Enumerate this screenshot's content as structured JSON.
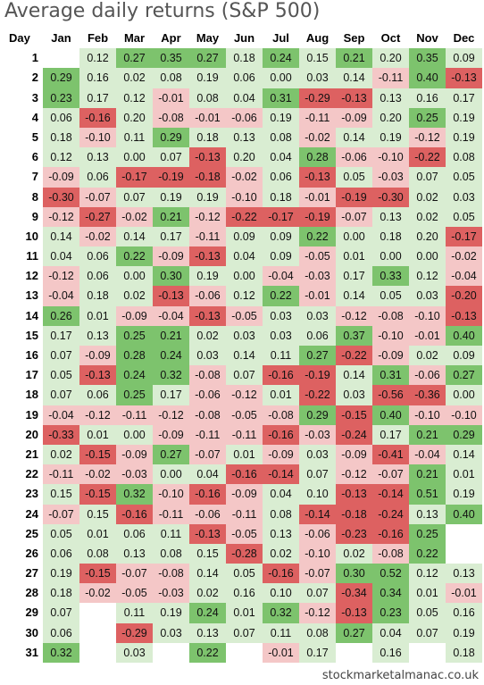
{
  "title": "Average daily returns (S&P 500)",
  "credit": "stockmarketalmanac.co.uk",
  "colors": {
    "strong_positive": "#7dc36d",
    "positive": "#d9edd2",
    "negative": "#f4c7c7",
    "strong_negative": "#dd6161"
  },
  "chart_data": {
    "type": "table",
    "title": "Average daily returns (S&P 500)",
    "row_header": "Day",
    "columns": [
      "Jan",
      "Feb",
      "Mar",
      "Apr",
      "May",
      "Jun",
      "Jul",
      "Aug",
      "Sep",
      "Oct",
      "Nov",
      "Dec"
    ],
    "rows": [
      {
        "day": "1",
        "values": [
          "",
          0.12,
          0.27,
          0.35,
          0.27,
          0.18,
          0.24,
          0.15,
          0.21,
          0.2,
          0.35,
          0.09
        ]
      },
      {
        "day": "2",
        "values": [
          0.29,
          0.16,
          0.02,
          0.08,
          0.19,
          0.06,
          0.0,
          0.03,
          0.14,
          -0.11,
          0.4,
          -0.13
        ]
      },
      {
        "day": "3",
        "values": [
          0.23,
          0.17,
          0.12,
          -0.01,
          0.08,
          0.04,
          0.31,
          -0.29,
          -0.13,
          0.13,
          0.16,
          0.17
        ]
      },
      {
        "day": "4",
        "values": [
          0.06,
          -0.16,
          0.2,
          -0.08,
          -0.01,
          -0.06,
          0.19,
          -0.11,
          -0.09,
          0.2,
          0.25,
          0.19
        ]
      },
      {
        "day": "5",
        "values": [
          0.18,
          -0.1,
          0.11,
          0.29,
          0.18,
          0.13,
          0.08,
          -0.02,
          0.14,
          0.19,
          -0.12,
          0.19
        ]
      },
      {
        "day": "6",
        "values": [
          0.12,
          0.13,
          0.0,
          0.07,
          -0.13,
          0.2,
          0.04,
          0.28,
          -0.06,
          -0.1,
          -0.22,
          0.08
        ]
      },
      {
        "day": "7",
        "values": [
          -0.09,
          0.06,
          -0.17,
          -0.19,
          -0.18,
          -0.02,
          0.06,
          -0.13,
          0.05,
          -0.03,
          0.07,
          0.05
        ]
      },
      {
        "day": "8",
        "values": [
          -0.3,
          -0.07,
          0.07,
          0.19,
          0.19,
          -0.1,
          0.18,
          -0.01,
          -0.19,
          -0.3,
          0.02,
          0.03
        ]
      },
      {
        "day": "9",
        "values": [
          -0.12,
          -0.27,
          -0.02,
          0.21,
          -0.12,
          -0.22,
          -0.17,
          -0.19,
          -0.07,
          0.13,
          0.02,
          0.05
        ]
      },
      {
        "day": "10",
        "values": [
          0.14,
          -0.02,
          0.14,
          0.17,
          -0.11,
          0.09,
          0.09,
          0.22,
          0.0,
          0.18,
          0.2,
          -0.17
        ]
      },
      {
        "day": "11",
        "values": [
          0.04,
          0.06,
          0.22,
          -0.09,
          -0.13,
          0.04,
          0.09,
          -0.05,
          0.01,
          0.0,
          0.0,
          -0.02
        ]
      },
      {
        "day": "12",
        "values": [
          -0.12,
          0.06,
          0.0,
          0.3,
          0.19,
          0.0,
          -0.04,
          -0.03,
          0.17,
          0.33,
          0.12,
          -0.04
        ]
      },
      {
        "day": "13",
        "values": [
          -0.04,
          0.18,
          0.02,
          -0.13,
          -0.06,
          0.12,
          0.22,
          -0.01,
          0.14,
          0.05,
          0.03,
          -0.2
        ]
      },
      {
        "day": "14",
        "values": [
          0.26,
          0.01,
          -0.09,
          -0.04,
          -0.13,
          -0.05,
          0.03,
          0.03,
          -0.12,
          -0.08,
          -0.1,
          -0.13
        ]
      },
      {
        "day": "15",
        "values": [
          0.17,
          0.13,
          0.25,
          0.21,
          0.02,
          0.03,
          0.03,
          0.06,
          0.37,
          -0.1,
          -0.01,
          0.4
        ]
      },
      {
        "day": "16",
        "values": [
          0.07,
          -0.09,
          0.28,
          0.24,
          0.03,
          0.14,
          0.11,
          0.27,
          -0.22,
          -0.09,
          0.02,
          0.09
        ]
      },
      {
        "day": "17",
        "values": [
          0.05,
          -0.13,
          0.24,
          0.32,
          -0.08,
          0.07,
          -0.16,
          -0.19,
          0.14,
          0.31,
          -0.06,
          0.27
        ]
      },
      {
        "day": "18",
        "values": [
          0.07,
          0.06,
          0.25,
          0.17,
          -0.06,
          -0.12,
          0.01,
          -0.22,
          0.03,
          -0.56,
          -0.36,
          0.0
        ]
      },
      {
        "day": "19",
        "values": [
          -0.04,
          -0.12,
          -0.11,
          -0.12,
          -0.08,
          -0.05,
          -0.08,
          0.29,
          -0.15,
          0.4,
          -0.1,
          -0.1
        ]
      },
      {
        "day": "20",
        "values": [
          -0.33,
          0.01,
          0.0,
          -0.09,
          -0.11,
          -0.11,
          -0.16,
          -0.03,
          -0.24,
          0.17,
          0.21,
          0.29
        ]
      },
      {
        "day": "21",
        "values": [
          0.02,
          -0.15,
          -0.09,
          0.27,
          -0.07,
          0.01,
          -0.09,
          0.03,
          -0.09,
          -0.41,
          -0.04,
          0.14
        ]
      },
      {
        "day": "22",
        "values": [
          -0.11,
          -0.02,
          -0.03,
          0.0,
          0.04,
          -0.16,
          -0.14,
          0.07,
          -0.12,
          -0.07,
          0.21,
          0.01
        ]
      },
      {
        "day": "23",
        "values": [
          0.15,
          -0.15,
          0.32,
          -0.1,
          -0.16,
          -0.09,
          0.04,
          0.1,
          -0.13,
          -0.14,
          0.51,
          0.19
        ]
      },
      {
        "day": "24",
        "values": [
          -0.07,
          0.15,
          -0.16,
          -0.11,
          -0.06,
          -0.11,
          0.08,
          -0.14,
          -0.18,
          -0.24,
          0.13,
          0.4
        ]
      },
      {
        "day": "25",
        "values": [
          0.05,
          0.01,
          0.06,
          0.11,
          -0.13,
          -0.05,
          0.13,
          -0.06,
          -0.23,
          -0.16,
          0.25,
          ""
        ]
      },
      {
        "day": "26",
        "values": [
          0.06,
          0.08,
          0.13,
          0.08,
          0.15,
          -0.28,
          0.02,
          -0.1,
          0.02,
          -0.08,
          0.22,
          ""
        ]
      },
      {
        "day": "27",
        "values": [
          0.19,
          -0.15,
          -0.07,
          -0.08,
          0.14,
          0.05,
          -0.16,
          -0.07,
          0.3,
          0.52,
          0.12,
          0.13
        ]
      },
      {
        "day": "28",
        "values": [
          0.18,
          -0.02,
          -0.05,
          -0.03,
          0.02,
          0.16,
          0.1,
          0.07,
          -0.34,
          0.34,
          0.01,
          -0.01
        ]
      },
      {
        "day": "29",
        "values": [
          0.07,
          "",
          0.11,
          0.19,
          0.24,
          0.01,
          0.32,
          -0.12,
          -0.13,
          0.23,
          0.05,
          0.16
        ]
      },
      {
        "day": "30",
        "values": [
          0.06,
          "",
          -0.29,
          0.03,
          0.13,
          0.07,
          0.11,
          0.08,
          0.27,
          0.04,
          0.07,
          0.19
        ]
      },
      {
        "day": "31",
        "values": [
          0.32,
          "",
          0.03,
          "",
          0.22,
          "",
          -0.01,
          0.17,
          "",
          0.16,
          "",
          0.18
        ]
      }
    ]
  }
}
